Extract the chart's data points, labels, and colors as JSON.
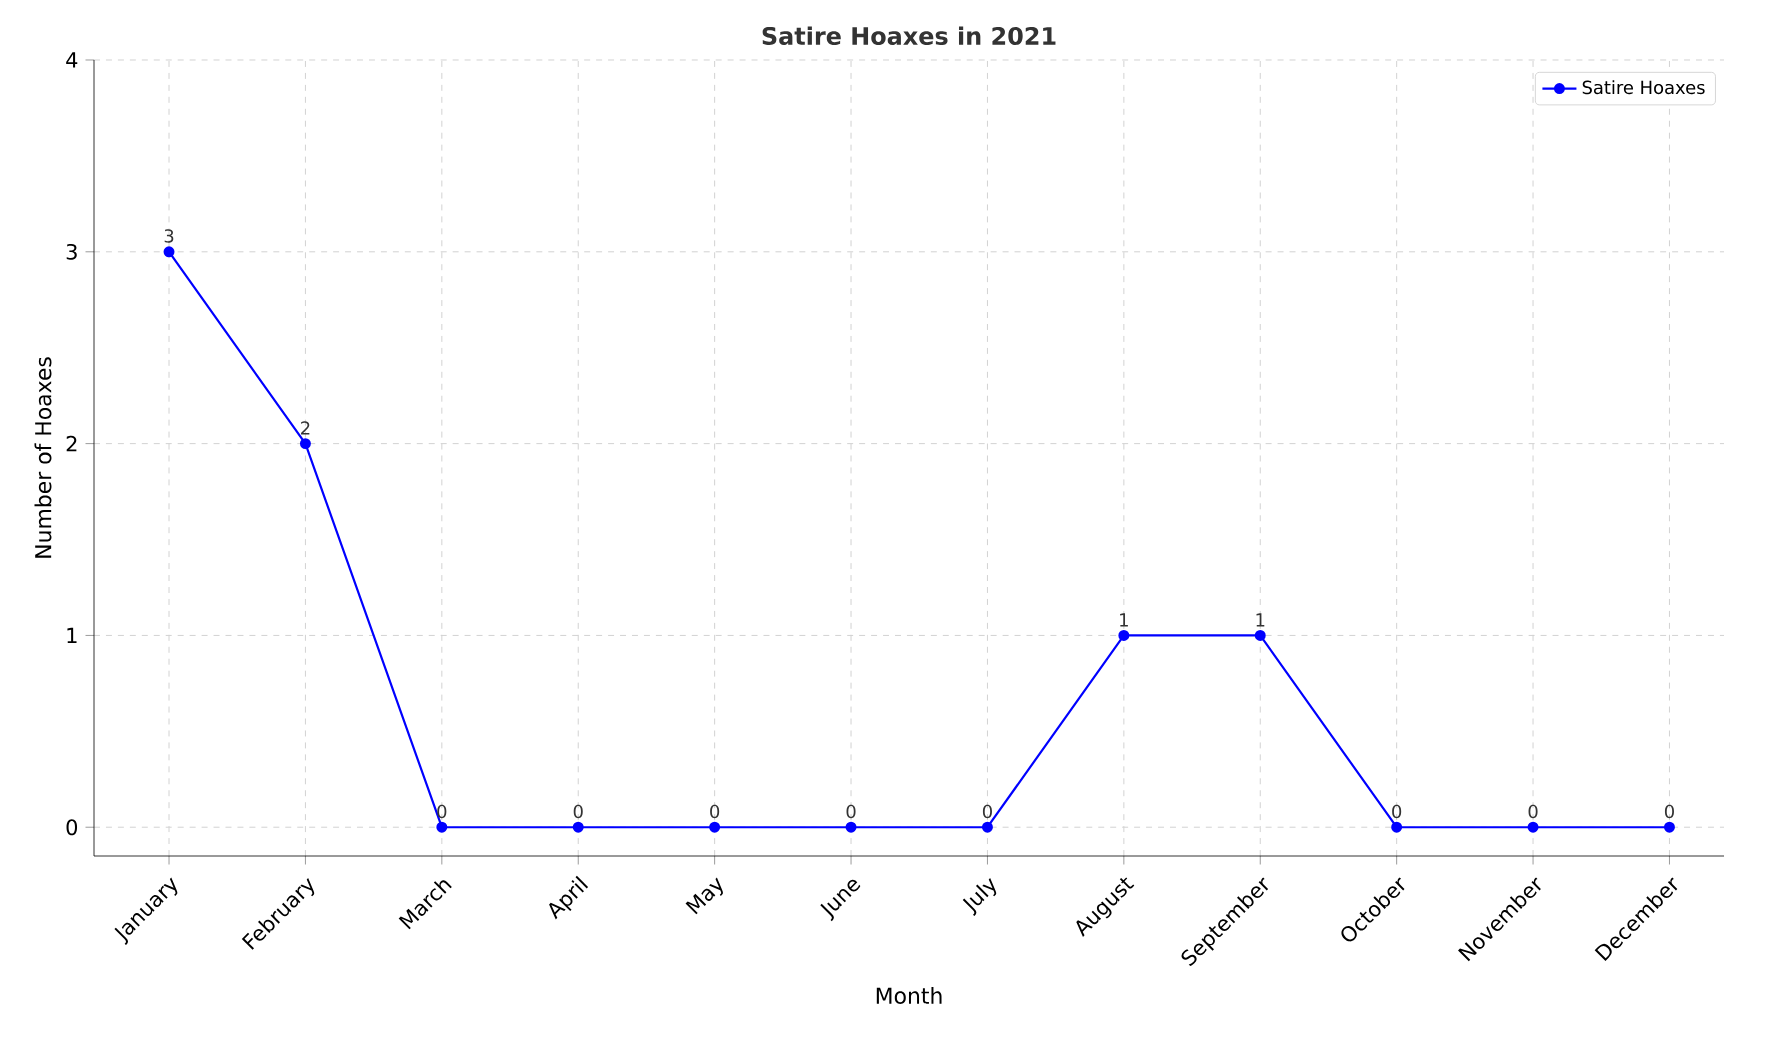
{
  "chart_data": {
    "type": "line",
    "title": "Satire Hoaxes in 2021",
    "xlabel": "Month",
    "ylabel": "Number of Hoaxes",
    "categories": [
      "January",
      "February",
      "March",
      "April",
      "May",
      "June",
      "July",
      "August",
      "September",
      "October",
      "November",
      "December"
    ],
    "series": [
      {
        "name": "Satire Hoaxes",
        "color": "#0000ff",
        "values": [
          3,
          2,
          0,
          0,
          0,
          0,
          0,
          1,
          1,
          0,
          0,
          0
        ]
      }
    ],
    "ylim": [
      -0.15,
      4
    ],
    "yticks": [
      0,
      1,
      2,
      3,
      4
    ],
    "grid": true,
    "legend": "top right",
    "marker": "circle",
    "line_style": "solid",
    "data_labels": true
  }
}
